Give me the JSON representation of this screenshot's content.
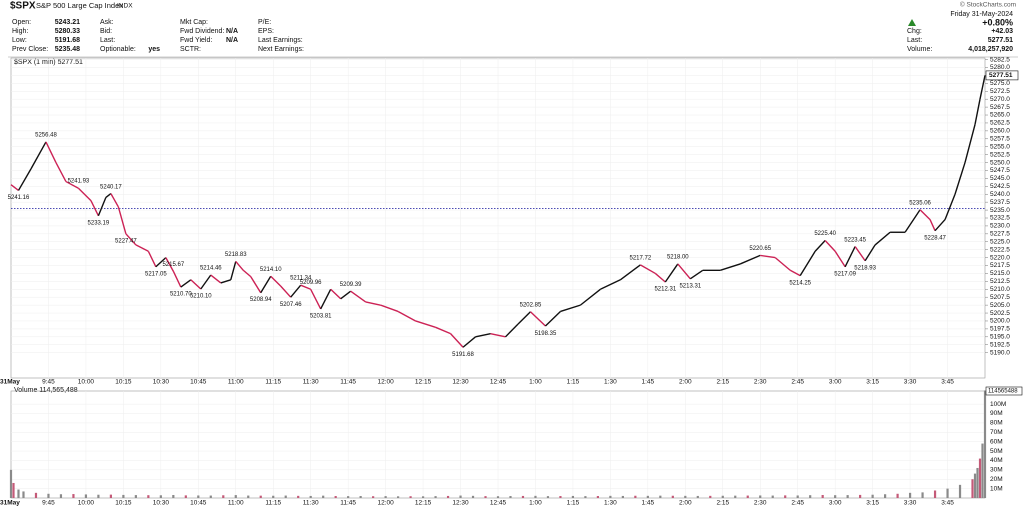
{
  "header": {
    "symbol": "$SPX",
    "name": "S&P 500 Large Cap Index",
    "exchange": "INDX",
    "watermark": "© StockCharts.com",
    "date": "Friday  31-May-2024",
    "change_pct": "+0.80%",
    "fields": [
      [
        {
          "label": "Open:",
          "value": "5243.21"
        },
        {
          "label": "High:",
          "value": "5280.33"
        },
        {
          "label": "Low:",
          "value": "5191.68"
        },
        {
          "label": "Prev Close:",
          "value": "5235.48"
        }
      ],
      [
        {
          "label": "Ask:"
        },
        {
          "label": "Bid:"
        },
        {
          "label": "Last:"
        },
        {
          "label": "Optionable:",
          "value": "yes"
        }
      ],
      [
        {
          "label": "Mkt Cap:"
        },
        {
          "label": "Fwd Dividend:",
          "value": "N/A"
        },
        {
          "label": "Fwd Yield:",
          "value": "N/A"
        },
        {
          "label": "SCTR:"
        }
      ],
      [
        {
          "label": "P/E:"
        },
        {
          "label": "EPS:"
        },
        {
          "label": "Last Earnings:"
        },
        {
          "label": "Next Earnings:"
        }
      ]
    ],
    "right_fields": [
      {
        "label": "Chg:",
        "value": "+42.03"
      },
      {
        "label": "Last:",
        "value": "5277.51"
      },
      {
        "label": "Volume:",
        "value": "4,018,257,920"
      }
    ]
  },
  "chart_data": {
    "type": "stock",
    "legend": "$SPX (1 min) 5277.51",
    "volume_label": "Volume 114,565,488",
    "xlim": [
      0,
      390
    ],
    "xticks": [
      {
        "value": 0,
        "label": "31May"
      },
      {
        "value": 15,
        "label": "9:45"
      },
      {
        "value": 30,
        "label": "10:00"
      },
      {
        "value": 45,
        "label": "10:15"
      },
      {
        "value": 60,
        "label": "10:30"
      },
      {
        "value": 75,
        "label": "10:45"
      },
      {
        "value": 90,
        "label": "11:00"
      },
      {
        "value": 105,
        "label": "11:15"
      },
      {
        "value": 120,
        "label": "11:30"
      },
      {
        "value": 135,
        "label": "11:45"
      },
      {
        "value": 150,
        "label": "12:00"
      },
      {
        "value": 165,
        "label": "12:15"
      },
      {
        "value": 180,
        "label": "12:30"
      },
      {
        "value": 195,
        "label": "12:45"
      },
      {
        "value": 210,
        "label": "1:00"
      },
      {
        "value": 225,
        "label": "1:15"
      },
      {
        "value": 240,
        "label": "1:30"
      },
      {
        "value": 255,
        "label": "1:45"
      },
      {
        "value": 270,
        "label": "2:00"
      },
      {
        "value": 285,
        "label": "2:15"
      },
      {
        "value": 300,
        "label": "2:30"
      },
      {
        "value": 315,
        "label": "2:45"
      },
      {
        "value": 330,
        "label": "3:00"
      },
      {
        "value": 345,
        "label": "3:15"
      },
      {
        "value": 360,
        "label": "3:30"
      },
      {
        "value": 375,
        "label": "3:45"
      }
    ],
    "ylim": [
      5182,
      5283
    ],
    "yticks": [
      {
        "value": 5190,
        "label": "5190.0"
      },
      5192.5,
      {
        "value": 5195,
        "label": "5195.0"
      },
      5197.5,
      {
        "value": 5200,
        "label": "5200.0"
      },
      5202.5,
      {
        "value": 5205,
        "label": "5205.0"
      },
      5207.5,
      {
        "value": 5210,
        "label": "5210.0"
      },
      5212.5,
      {
        "value": 5215,
        "label": "5215.0"
      },
      5217.5,
      {
        "value": 5220,
        "label": "5220.0"
      },
      5222.5,
      {
        "value": 5225,
        "label": "5225.0"
      },
      5227.5,
      {
        "value": 5230,
        "label": "5230.0"
      },
      5232.5,
      {
        "value": 5235,
        "label": "5235.0"
      },
      5237.5,
      {
        "value": 5240,
        "label": "5240.0"
      },
      5242.5,
      {
        "value": 5245,
        "label": "5245.0"
      },
      5247.5,
      {
        "value": 5250,
        "label": "5250.0"
      },
      5252.5,
      {
        "value": 5255,
        "label": "5255.0"
      },
      5257.5,
      {
        "value": 5260,
        "label": "5260.0"
      },
      5262.5,
      {
        "value": 5265,
        "label": "5265.0"
      },
      5267.5,
      {
        "value": 5270,
        "label": "5270.0"
      },
      5272.5,
      {
        "value": 5275,
        "label": "5275.0"
      },
      5277.5,
      {
        "value": 5280,
        "label": "5280.0"
      },
      5282.5
    ],
    "grid": true,
    "reference_line": {
      "value": 5235.48,
      "color": "#3333aa"
    },
    "price": {
      "up_color": "#111111",
      "down_color": "#cc2255",
      "x": [
        0,
        3,
        8,
        14,
        18,
        22,
        27,
        32,
        35,
        38,
        40,
        43,
        46,
        50,
        55,
        58,
        62,
        65,
        68,
        72,
        76,
        80,
        84,
        88,
        90,
        93,
        96,
        100,
        104,
        108,
        112,
        116,
        120,
        124,
        128,
        132,
        136,
        142,
        148,
        155,
        162,
        170,
        176,
        181,
        186,
        192,
        198,
        203,
        208,
        214,
        220,
        228,
        236,
        244,
        252,
        258,
        262,
        267,
        272,
        277,
        284,
        292,
        300,
        306,
        312,
        316,
        322,
        326,
        330,
        334,
        338,
        342,
        346,
        352,
        358,
        364,
        368,
        370,
        374,
        378,
        382,
        386,
        388,
        390
      ],
      "values": [
        5243,
        5241.2,
        5248,
        5256.5,
        5250,
        5244,
        5241.9,
        5238,
        5233.2,
        5239,
        5240.2,
        5236,
        5227.5,
        5224,
        5222,
        5217.1,
        5220,
        5215.7,
        5210.7,
        5213,
        5210.1,
        5214.5,
        5212,
        5213,
        5218.8,
        5216,
        5214,
        5208.9,
        5214.1,
        5211,
        5207.5,
        5211.3,
        5210,
        5203.8,
        5210,
        5207,
        5209.4,
        5206,
        5205,
        5203,
        5200,
        5198,
        5196,
        5191.7,
        5195,
        5196,
        5195,
        5199,
        5202.9,
        5198.4,
        5203,
        5205,
        5210,
        5213,
        5217.7,
        5215,
        5212.3,
        5218,
        5213.3,
        5216,
        5216,
        5218,
        5220.7,
        5220,
        5216,
        5214.3,
        5222,
        5225.4,
        5222,
        5217.1,
        5223.5,
        5219,
        5224,
        5228,
        5228,
        5235.1,
        5232,
        5228.5,
        5232,
        5240,
        5250,
        5262,
        5270,
        5277.51
      ]
    },
    "annotations": [
      {
        "x": 3,
        "value": 5241.16,
        "label": "5241.16"
      },
      {
        "x": 14,
        "value": 5256.48,
        "label": "5256.48"
      },
      {
        "x": 27,
        "value": 5241.93,
        "label": "5241.93"
      },
      {
        "x": 35,
        "value": 5233.19,
        "label": "5233.19"
      },
      {
        "x": 40,
        "value": 5240.17,
        "label": "5240.17"
      },
      {
        "x": 46,
        "value": 5227.47,
        "label": "5227.47"
      },
      {
        "x": 58,
        "value": 5217.05,
        "label": "5217.05"
      },
      {
        "x": 65,
        "value": 5215.67,
        "label": "5215.67"
      },
      {
        "x": 68,
        "value": 5210.7,
        "label": "5210.70"
      },
      {
        "x": 76,
        "value": 5210.1,
        "label": "5210.10"
      },
      {
        "x": 80,
        "value": 5214.46,
        "label": "5214.46"
      },
      {
        "x": 90,
        "value": 5218.83,
        "label": "5218.83"
      },
      {
        "x": 100,
        "value": 5208.94,
        "label": "5208.94"
      },
      {
        "x": 104,
        "value": 5214.1,
        "label": "5214.10"
      },
      {
        "x": 112,
        "value": 5207.46,
        "label": "5207.46"
      },
      {
        "x": 116,
        "value": 5211.34,
        "label": "5211.34"
      },
      {
        "x": 120,
        "value": 5209.96,
        "label": "5209.96"
      },
      {
        "x": 124,
        "value": 5203.81,
        "label": "5203.81"
      },
      {
        "x": 136,
        "value": 5209.39,
        "label": "5209.39"
      },
      {
        "x": 181,
        "value": 5191.68,
        "label": "5191.68"
      },
      {
        "x": 208,
        "value": 5202.85,
        "label": "5202.85"
      },
      {
        "x": 214,
        "value": 5198.35,
        "label": "5198.35"
      },
      {
        "x": 252,
        "value": 5217.72,
        "label": "5217.72"
      },
      {
        "x": 262,
        "value": 5212.31,
        "label": "5212.31"
      },
      {
        "x": 267,
        "value": 5218,
        "label": "5218.00"
      },
      {
        "x": 272,
        "value": 5213.31,
        "label": "5213.31"
      },
      {
        "x": 300,
        "value": 5220.65,
        "label": "5220.65"
      },
      {
        "x": 316,
        "value": 5214.25,
        "label": "5214.25"
      },
      {
        "x": 326,
        "value": 5225.4,
        "label": "5225.40"
      },
      {
        "x": 334,
        "value": 5217.09,
        "label": "5217.09"
      },
      {
        "x": 338,
        "value": 5223.45,
        "label": "5223.45"
      },
      {
        "x": 342,
        "value": 5218.93,
        "label": "5218.93"
      },
      {
        "x": 364,
        "value": 5235.06,
        "label": "5235.06"
      },
      {
        "x": 370,
        "value": 5228.47,
        "label": "5228.47"
      }
    ],
    "volume": {
      "color": "#8a8a8a",
      "ylim": [
        0,
        114000000
      ],
      "yticks": [
        {
          "value": 10000000,
          "label": "10M"
        },
        {
          "value": 20000000,
          "label": "20M"
        },
        {
          "value": 30000000,
          "label": "30M"
        },
        {
          "value": 40000000,
          "label": "40M"
        },
        {
          "value": 50000000,
          "label": "50M"
        },
        {
          "value": 60000000,
          "label": "60M"
        },
        {
          "value": 70000000,
          "label": "70M"
        },
        {
          "value": 80000000,
          "label": "80M"
        },
        {
          "value": 90000000,
          "label": "90M"
        },
        {
          "value": 100000000,
          "label": "100M"
        }
      ],
      "x": [
        0,
        1,
        3,
        5,
        10,
        15,
        20,
        25,
        30,
        35,
        40,
        45,
        50,
        55,
        60,
        65,
        70,
        75,
        80,
        85,
        90,
        95,
        100,
        105,
        110,
        115,
        120,
        125,
        130,
        135,
        140,
        145,
        150,
        155,
        160,
        165,
        170,
        175,
        180,
        185,
        190,
        195,
        200,
        205,
        210,
        215,
        220,
        225,
        230,
        235,
        240,
        245,
        250,
        255,
        260,
        265,
        270,
        275,
        280,
        285,
        290,
        295,
        300,
        305,
        310,
        315,
        320,
        325,
        330,
        335,
        340,
        345,
        350,
        355,
        360,
        365,
        370,
        375,
        380,
        385,
        386,
        387,
        388,
        389,
        390
      ],
      "values": [
        30000000,
        16000000,
        9000000,
        7000000,
        5500000,
        4500000,
        4000000,
        4200000,
        3800000,
        3500000,
        3600000,
        3300000,
        3100000,
        3000000,
        2900000,
        3200000,
        2800000,
        2700000,
        2600000,
        2900000,
        3100000,
        2600000,
        2500000,
        2400000,
        2600000,
        2300000,
        2200000,
        2500000,
        2100000,
        2000000,
        2100000,
        1900000,
        2000000,
        1800000,
        1900000,
        1800000,
        2000000,
        2200000,
        2600000,
        2300000,
        2000000,
        1900000,
        2100000,
        2200000,
        2300000,
        2000000,
        2100000,
        2200000,
        2000000,
        2100000,
        2300000,
        2200000,
        2400000,
        2300000,
        2500000,
        2400000,
        2300000,
        2200000,
        2300000,
        2400000,
        2500000,
        2600000,
        2700000,
        2600000,
        2800000,
        2700000,
        3000000,
        3200000,
        3000000,
        3100000,
        3300000,
        3500000,
        4000000,
        4500000,
        5500000,
        6000000,
        8000000,
        10000000,
        14000000,
        20000000,
        26000000,
        32000000,
        42000000,
        58000000,
        114565488
      ]
    }
  }
}
